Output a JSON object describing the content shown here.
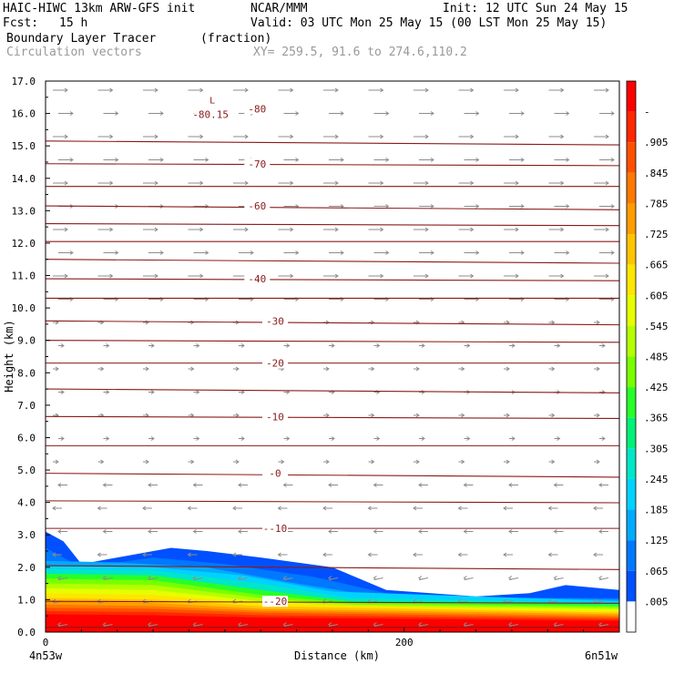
{
  "header": {
    "model": "HAIC-HIWC 13km ARW-GFS init",
    "center": "NCAR/MMM",
    "init": "Init: 12 UTC Sun 24 May 15",
    "fcst_label": "Fcst:",
    "fcst_value": "15 h",
    "valid": "Valid: 03 UTC Mon 25 May 15 (00 LST Mon 25 May 15)",
    "field_name": "Boundary Layer Tracer",
    "field_units": "(fraction)",
    "vector_name": "Circulation vectors",
    "xy": "XY= 259.5, 91.6 to 274.6,110.2"
  },
  "chart_data": {
    "type": "area",
    "title": "Boundary Layer Tracer",
    "xlabel": "Distance (km)",
    "ylabel": "Height (km)",
    "xlim": [
      0,
      320
    ],
    "ylim": [
      0,
      17
    ],
    "x_ticks": [
      0,
      200
    ],
    "x_tick_labels": [
      "0",
      "200"
    ],
    "x_end_labels": {
      "left": "4n53w",
      "right": "6n51w"
    },
    "y_ticks": [
      0,
      1,
      2,
      3,
      4,
      5,
      6,
      7,
      8,
      9,
      10,
      11,
      12,
      13,
      14,
      15,
      16,
      17
    ],
    "y_tick_labels": [
      "0.0",
      "1.0",
      "2.0",
      "3.0",
      "4.0",
      "5.0",
      "6.0",
      "7.0",
      "8.0",
      "9.0",
      "10.0",
      "11.0",
      "12.0",
      "13.0",
      "14.0",
      "15.0",
      "16.0",
      "17.0"
    ],
    "colorbar": {
      "labels": [
        "-",
        ".905",
        ".845",
        ".785",
        ".725",
        ".665",
        ".605",
        ".545",
        ".485",
        ".425",
        ".365",
        ".305",
        ".245",
        ".185",
        ".125",
        ".065",
        ".005"
      ],
      "colors": [
        "#ff0000",
        "#ff2800",
        "#ff5000",
        "#ff7800",
        "#ff9c00",
        "#ffc400",
        "#ffe600",
        "#e6ff00",
        "#b4ff00",
        "#78ff00",
        "#28ff28",
        "#00f078",
        "#00e6c8",
        "#00d2ff",
        "#00aaff",
        "#0078ff",
        "#0050ff",
        "#ffffff"
      ]
    },
    "tracer_layers": [
      {
        "level": 0.005,
        "color": "#0050ff",
        "top": [
          [
            0,
            3.1
          ],
          [
            10,
            2.8
          ],
          [
            20,
            2.1
          ],
          [
            40,
            2.3
          ],
          [
            70,
            2.6
          ],
          [
            90,
            2.5
          ],
          [
            120,
            2.3
          ],
          [
            160,
            2.0
          ],
          [
            190,
            1.3
          ],
          [
            240,
            1.1
          ],
          [
            270,
            1.2
          ],
          [
            290,
            1.45
          ],
          [
            310,
            1.35
          ],
          [
            320,
            1.3
          ]
        ]
      },
      {
        "level": 0.065,
        "color": "#0078ff",
        "top": [
          [
            0,
            2.6
          ],
          [
            20,
            2.0
          ],
          [
            60,
            2.3
          ],
          [
            100,
            2.1
          ],
          [
            150,
            1.7
          ],
          [
            190,
            1.2
          ],
          [
            260,
            1.05
          ],
          [
            320,
            1.05
          ]
        ]
      },
      {
        "level": 0.125,
        "color": "#00aaff",
        "top": [
          [
            0,
            2.2
          ],
          [
            40,
            2.15
          ],
          [
            90,
            2.0
          ],
          [
            140,
            1.5
          ],
          [
            180,
            1.15
          ],
          [
            320,
            1.0
          ]
        ]
      },
      {
        "level": 0.185,
        "color": "#00d2ff",
        "top": [
          [
            0,
            2.05
          ],
          [
            50,
            2.05
          ],
          [
            110,
            1.75
          ],
          [
            160,
            1.25
          ],
          [
            320,
            0.95
          ]
        ]
      },
      {
        "level": 0.245,
        "color": "#00e6c8",
        "top": [
          [
            0,
            1.95
          ],
          [
            60,
            1.9
          ],
          [
            120,
            1.5
          ],
          [
            170,
            1.05
          ],
          [
            320,
            0.9
          ]
        ]
      },
      {
        "level": 0.305,
        "color": "#28ff28",
        "top": [
          [
            0,
            1.8
          ],
          [
            60,
            1.75
          ],
          [
            120,
            1.3
          ],
          [
            170,
            0.95
          ],
          [
            320,
            0.85
          ]
        ]
      },
      {
        "level": 0.365,
        "color": "#78ff00",
        "top": [
          [
            0,
            1.65
          ],
          [
            60,
            1.6
          ],
          [
            120,
            1.15
          ],
          [
            170,
            0.9
          ],
          [
            320,
            0.8
          ]
        ]
      },
      {
        "level": 0.425,
        "color": "#b4ff00",
        "top": [
          [
            0,
            1.5
          ],
          [
            60,
            1.45
          ],
          [
            120,
            1.05
          ],
          [
            170,
            0.85
          ],
          [
            320,
            0.75
          ]
        ]
      },
      {
        "level": 0.485,
        "color": "#e6ff00",
        "top": [
          [
            0,
            1.35
          ],
          [
            60,
            1.3
          ],
          [
            120,
            0.95
          ],
          [
            170,
            0.8
          ],
          [
            320,
            0.7
          ]
        ]
      },
      {
        "level": 0.545,
        "color": "#ffe600",
        "top": [
          [
            0,
            1.2
          ],
          [
            60,
            1.15
          ],
          [
            120,
            0.88
          ],
          [
            320,
            0.65
          ]
        ]
      },
      {
        "level": 0.605,
        "color": "#ffc400",
        "top": [
          [
            0,
            1.05
          ],
          [
            60,
            1.0
          ],
          [
            120,
            0.8
          ],
          [
            320,
            0.6
          ]
        ]
      },
      {
        "level": 0.665,
        "color": "#ff9c00",
        "top": [
          [
            0,
            0.95
          ],
          [
            60,
            0.9
          ],
          [
            120,
            0.72
          ],
          [
            320,
            0.55
          ]
        ]
      },
      {
        "level": 0.725,
        "color": "#ff7800",
        "top": [
          [
            0,
            0.85
          ],
          [
            60,
            0.8
          ],
          [
            120,
            0.66
          ],
          [
            320,
            0.5
          ]
        ]
      },
      {
        "level": 0.785,
        "color": "#ff5000",
        "top": [
          [
            0,
            0.75
          ],
          [
            60,
            0.72
          ],
          [
            120,
            0.6
          ],
          [
            320,
            0.45
          ]
        ]
      },
      {
        "level": 0.845,
        "color": "#ff2800",
        "top": [
          [
            0,
            0.65
          ],
          [
            60,
            0.62
          ],
          [
            120,
            0.52
          ],
          [
            320,
            0.4
          ]
        ]
      },
      {
        "level": 0.905,
        "color": "#ff0000",
        "top": [
          [
            0,
            0.55
          ],
          [
            60,
            0.52
          ],
          [
            120,
            0.45
          ],
          [
            320,
            0.35
          ]
        ]
      }
    ],
    "isotherm_heights": [
      0.15,
      0.95,
      2.05,
      3.2,
      4.05,
      4.9,
      5.75,
      6.65,
      7.5,
      8.3,
      9.0,
      9.6,
      10.3,
      10.9,
      11.5,
      12.05,
      12.6,
      13.15,
      13.75,
      14.45,
      15.15
    ],
    "isotherm_labels": [
      {
        "text": "-20",
        "x": 128,
        "y": 0.95
      },
      {
        "text": "-10",
        "x": 128,
        "y": 3.2
      },
      {
        "text": "0",
        "x": 128,
        "y": 4.9
      },
      {
        "text": "10",
        "x": 128,
        "y": 6.65
      },
      {
        "text": "20",
        "x": 128,
        "y": 8.3
      },
      {
        "text": "30",
        "x": 128,
        "y": 9.6
      },
      {
        "text": "40",
        "x": 118,
        "y": 10.9
      },
      {
        "text": "60",
        "x": 118,
        "y": 13.15
      },
      {
        "text": "70",
        "x": 118,
        "y": 14.45
      },
      {
        "text": "80",
        "x": 118,
        "y": 16.15
      }
    ],
    "low_marker": {
      "letter": "L",
      "value": "80.15",
      "x": 90,
      "y": 16.15
    }
  }
}
